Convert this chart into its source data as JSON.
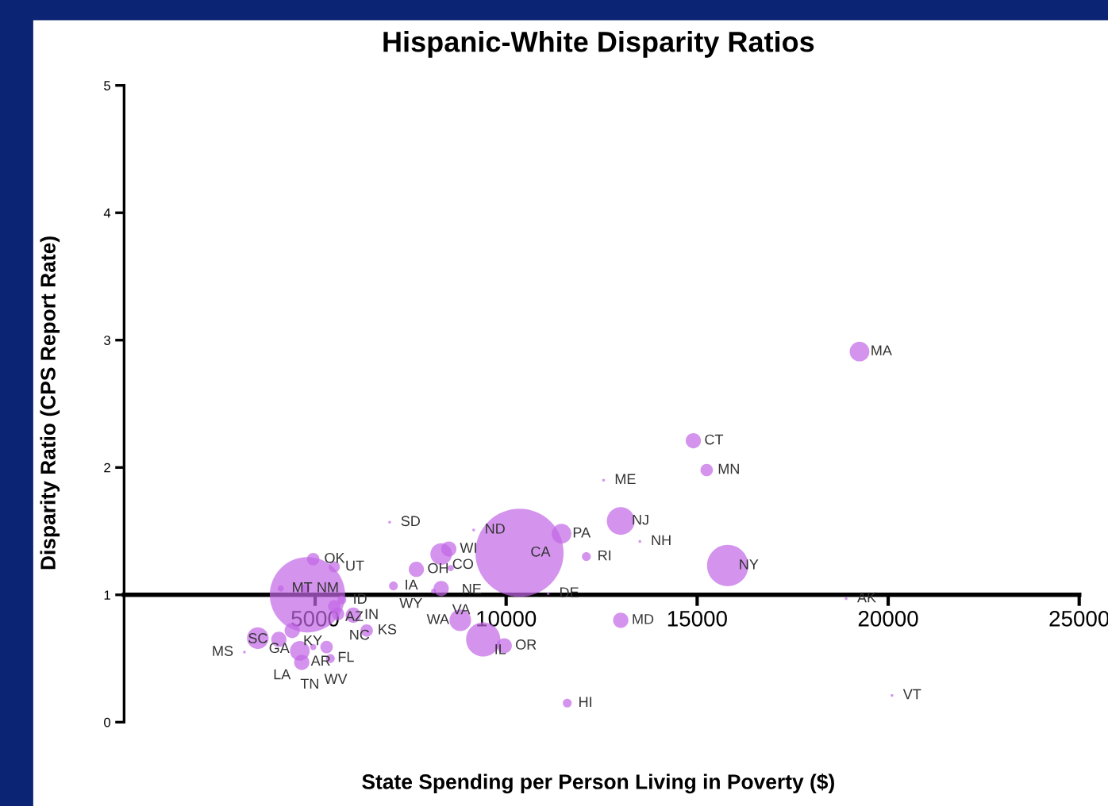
{
  "chart_data": {
    "type": "bubble",
    "title": "Hispanic-White Disparity Ratios",
    "xlabel": "State Spending per Person Living in Poverty ($)",
    "ylabel": "Disparity Ratio (CPS Report Rate)",
    "xlim": [
      0,
      25000
    ],
    "ylim": [
      0,
      5
    ],
    "xticks": [
      5000,
      10000,
      15000,
      20000,
      25000
    ],
    "yticks": [
      0,
      1,
      2,
      3,
      4,
      5
    ],
    "grid": false,
    "legend": false,
    "series": [
      {
        "color": "#c266e6",
        "x": [
          19250,
          14900,
          15250,
          12550,
          13000,
          13500,
          11450,
          12100,
          15800,
          11100,
          18900,
          13000,
          11600,
          20100,
          6950,
          9150,
          8500,
          8300,
          7650,
          8550,
          7050,
          8300,
          8100,
          8800,
          9400,
          9950,
          10350,
          6350,
          4950,
          5500,
          4100,
          4750,
          4800,
          5700,
          5500,
          5600,
          6000,
          4400,
          3500,
          4050,
          4600,
          4950,
          5300,
          3150,
          4650,
          5400
        ],
        "values": [
          2.91,
          2.21,
          1.98,
          1.9,
          1.58,
          1.42,
          1.48,
          1.3,
          1.23,
          1.01,
          0.97,
          0.8,
          0.15,
          0.21,
          1.57,
          1.51,
          1.36,
          1.32,
          1.2,
          1.21,
          1.07,
          1.05,
          1.03,
          0.8,
          0.65,
          0.6,
          1.33,
          0.72,
          1.28,
          1.22,
          1.05,
          1.05,
          1.0,
          0.96,
          0.91,
          0.85,
          0.84,
          0.72,
          0.66,
          0.65,
          0.56,
          0.59,
          0.59,
          0.55,
          0.47,
          0.5
        ],
        "sizes": [
          0.05,
          0.03,
          0.02,
          0.001,
          0.1,
          0.001,
          0.05,
          0.01,
          0.22,
          0.001,
          0.001,
          0.03,
          0.01,
          0.001,
          0.001,
          0.001,
          0.03,
          0.06,
          0.03,
          0.005,
          0.01,
          0.03,
          0.003,
          0.06,
          0.15,
          0.03,
          1,
          0.02,
          0.02,
          0.016,
          0.005,
          0.01,
          0.73,
          0.01,
          0.02,
          0.02,
          0.03,
          0.03,
          0.06,
          0.03,
          0.05,
          0.005,
          0.02,
          0.001,
          0.03,
          0.01
        ]
      }
    ],
    "annotations": [
      {
        "text": "MA",
        "x": 19250,
        "y": 2.91
      },
      {
        "text": "CT",
        "x": 14900,
        "y": 2.21
      },
      {
        "text": "MN",
        "x": 15250,
        "y": 1.98
      },
      {
        "text": "ME",
        "x": 12550,
        "y": 1.9
      },
      {
        "text": "NJ",
        "x": 13000,
        "y": 1.58
      },
      {
        "text": "NH",
        "x": 13500,
        "y": 1.42
      },
      {
        "text": "PA",
        "x": 11450,
        "y": 1.48
      },
      {
        "text": "RI",
        "x": 12100,
        "y": 1.3
      },
      {
        "text": "NY",
        "x": 15800,
        "y": 1.23
      },
      {
        "text": "DE",
        "x": 11100,
        "y": 1.01
      },
      {
        "text": "AK",
        "x": 18900,
        "y": 0.97
      },
      {
        "text": "MD",
        "x": 13000,
        "y": 0.8
      },
      {
        "text": "HI",
        "x": 11600,
        "y": 0.15
      },
      {
        "text": "VT",
        "x": 20100,
        "y": 0.21
      },
      {
        "text": "SD",
        "x": 6950,
        "y": 1.57
      },
      {
        "text": "ND",
        "x": 9150,
        "y": 1.51
      },
      {
        "text": "WI",
        "x": 8500,
        "y": 1.36
      },
      {
        "text": "CO",
        "x": 8300,
        "y": 1.32
      },
      {
        "text": "OH",
        "x": 7650,
        "y": 1.2
      },
      {
        "text": "NE",
        "x": 8550,
        "y": 1.21
      },
      {
        "text": "IA",
        "x": 7050,
        "y": 1.07
      },
      {
        "text": "VA",
        "x": 8300,
        "y": 1.05
      },
      {
        "text": "WY",
        "x": 8100,
        "y": 1.03
      },
      {
        "text": "WA",
        "x": 8800,
        "y": 0.8
      },
      {
        "text": "IL",
        "x": 9400,
        "y": 0.65
      },
      {
        "text": "OR",
        "x": 9950,
        "y": 0.6
      },
      {
        "text": "CA",
        "x": 10350,
        "y": 1.33
      },
      {
        "text": "KS",
        "x": 6350,
        "y": 0.72
      },
      {
        "text": "OK",
        "x": 4950,
        "y": 1.28
      },
      {
        "text": "UT",
        "x": 5500,
        "y": 1.22
      },
      {
        "text": "MT",
        "x": 4100,
        "y": 1.05
      },
      {
        "text": "NM",
        "x": 4750,
        "y": 1.05
      },
      {
        "text": "ID",
        "x": 5700,
        "y": 0.96
      },
      {
        "text": "AZ",
        "x": 5500,
        "y": 0.91
      },
      {
        "text": "NC",
        "x": 5600,
        "y": 0.85
      },
      {
        "text": "IN",
        "x": 6000,
        "y": 0.84
      },
      {
        "text": "KY",
        "x": 4400,
        "y": 0.72
      },
      {
        "text": "GA",
        "x": 3500,
        "y": 0.66
      },
      {
        "text": "SC",
        "x": 4050,
        "y": 0.65
      },
      {
        "text": "AR",
        "x": 4600,
        "y": 0.56
      },
      {
        "text": "WV",
        "x": 4950,
        "y": 0.59
      },
      {
        "text": "FL",
        "x": 5300,
        "y": 0.59
      },
      {
        "text": "MS",
        "x": 3150,
        "y": 0.55
      },
      {
        "text": "LA",
        "x": 4650,
        "y": 0.47
      },
      {
        "text": "TN",
        "x": 5400,
        "y": 0.5
      }
    ]
  }
}
